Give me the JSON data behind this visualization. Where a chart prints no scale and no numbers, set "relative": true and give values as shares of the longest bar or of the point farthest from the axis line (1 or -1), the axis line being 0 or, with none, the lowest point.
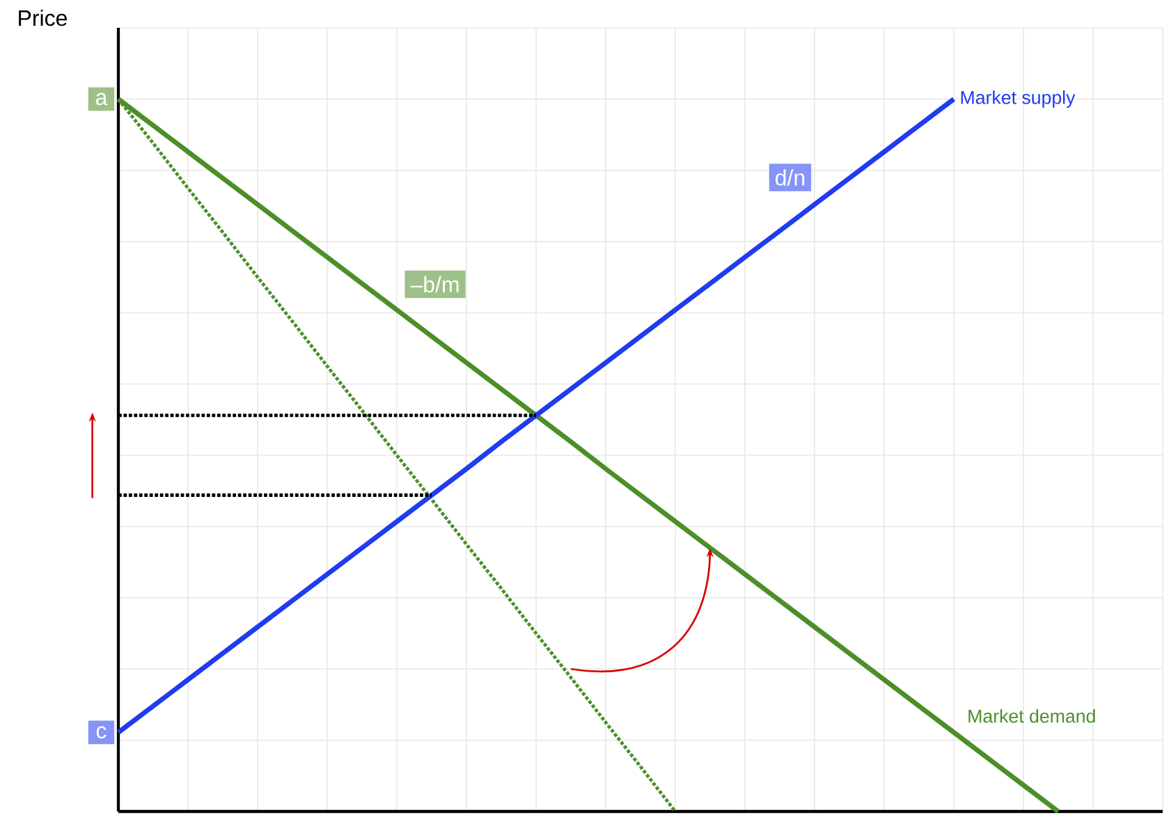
{
  "chart_data": {
    "type": "line",
    "ylabel": "Price",
    "grid": true,
    "relative": true,
    "categories": [
      null,
      null,
      null,
      null,
      null,
      null,
      null,
      null,
      null,
      null,
      null,
      null,
      null,
      null,
      null,
      null,
      null,
      null,
      null,
      null,
      null,
      null,
      null,
      null,
      null,
      null,
      null,
      null,
      null,
      null,
      null
    ],
    "series": [
      {
        "name": "Market demand",
        "color": "#4c8f28",
        "line_style": "solid",
        "values": [
          1,
          0.963,
          0.926,
          0.889,
          0.852,
          0.815,
          0.778,
          0.741,
          0.704,
          0.667,
          0.63,
          0.593,
          0.556,
          0.519,
          0.481,
          0.444,
          0.407,
          0.37,
          0.333,
          0.296,
          0.259,
          0.222,
          0.185,
          0.148,
          0.111,
          0.074,
          0.037,
          0,
          null,
          null,
          null
        ]
      },
      {
        "color": "#4c8f28",
        "line_style": "dotted",
        "values": [
          1,
          0.938,
          0.875,
          0.813,
          0.75,
          0.688,
          0.625,
          0.563,
          0.5,
          0.438,
          0.375,
          0.313,
          0.25,
          0.188,
          0.125,
          0.063,
          0,
          null,
          null,
          null,
          null,
          null,
          null,
          null,
          null,
          null,
          null,
          null,
          null,
          null,
          null
        ]
      },
      {
        "name": "Market supply",
        "color": "#1f3cf0",
        "line_style": "solid",
        "values": [
          0.111,
          0.148,
          0.185,
          0.222,
          0.259,
          0.296,
          0.333,
          0.37,
          0.407,
          0.444,
          0.481,
          0.519,
          0.556,
          0.593,
          0.63,
          0.667,
          0.704,
          0.741,
          0.778,
          0.815,
          0.852,
          0.889,
          0.926,
          0.963,
          1,
          null,
          null,
          null,
          null,
          null,
          null
        ]
      },
      {
        "color": "#000000",
        "line_style": "dotted",
        "values": [
          0.556,
          0.556,
          0.556,
          0.556,
          0.556,
          0.556,
          0.556,
          0.556,
          0.556,
          0.556,
          0.556,
          0.556,
          0.556,
          null,
          null,
          null,
          null,
          null,
          null,
          null,
          null,
          null,
          null,
          null,
          null,
          null,
          null,
          null,
          null,
          null,
          null
        ]
      },
      {
        "color": "#000000",
        "line_style": "dotted",
        "values": [
          0.444,
          0.444,
          0.444,
          0.444,
          0.444,
          0.444,
          0.444,
          0.444,
          0.444,
          0.444,
          null,
          null,
          null,
          null,
          null,
          null,
          null,
          null,
          null,
          null,
          null,
          null,
          null,
          null,
          null,
          null,
          null,
          null,
          null,
          null,
          null
        ]
      }
    ],
    "annotations": [
      "a",
      "c",
      "–b/m",
      "d/n"
    ]
  }
}
